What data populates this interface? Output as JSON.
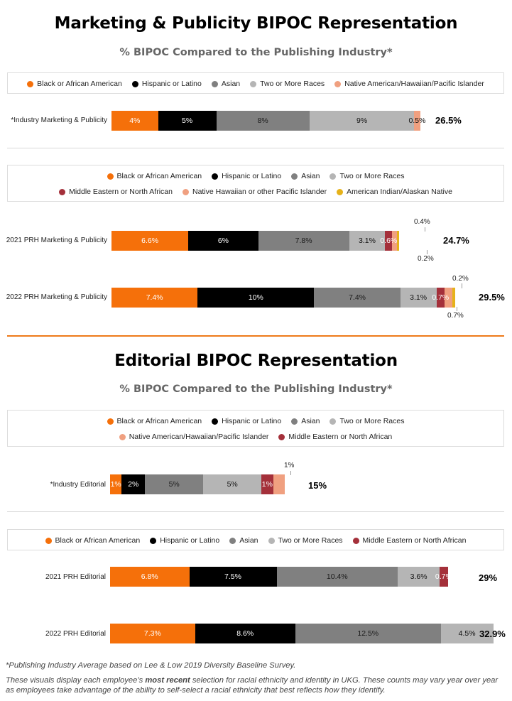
{
  "colors": {
    "black_african_american": "#f5700a",
    "hispanic_latino": "#000000",
    "asian": "#808080",
    "two_or_more": "#b5b5b5",
    "native_pacific": "#f0a080",
    "middle_eastern": "#a4303a",
    "american_indian": "#e6b21a"
  },
  "section1": {
    "title": "Marketing & Publicity BIPOC Representation",
    "subtitle": "% BIPOC Compared to the Publishing Industry*",
    "legend1": [
      {
        "label": "Black or African American",
        "color": "#f5700a"
      },
      {
        "label": "Hispanic or Latino",
        "color": "#000000"
      },
      {
        "label": "Asian",
        "color": "#808080"
      },
      {
        "label": "Two or More Races",
        "color": "#b5b5b5"
      },
      {
        "label": "Native American/Hawaiian/Pacific Islander",
        "color": "#f0a080"
      }
    ],
    "legend2_row1": [
      {
        "label": "Black or African American",
        "color": "#f5700a"
      },
      {
        "label": "Hispanic or Latino",
        "color": "#000000"
      },
      {
        "label": "Asian",
        "color": "#808080"
      },
      {
        "label": "Two or More Races",
        "color": "#b5b5b5"
      }
    ],
    "legend2_row2": [
      {
        "label": "Middle Eastern or North African",
        "color": "#a4303a"
      },
      {
        "label": "Native Hawaiian or other Pacific Islander",
        "color": "#f0a080"
      },
      {
        "label": "American Indian/Alaskan Native",
        "color": "#e6b21a"
      }
    ]
  },
  "section2": {
    "title": "Editorial BIPOC Representation",
    "subtitle": "% BIPOC Compared to the Publishing Industry*",
    "legend1_row1": [
      {
        "label": "Black or African American",
        "color": "#f5700a"
      },
      {
        "label": "Hispanic or Latino",
        "color": "#000000"
      },
      {
        "label": "Asian",
        "color": "#808080"
      },
      {
        "label": "Two or More Races",
        "color": "#b5b5b5"
      }
    ],
    "legend1_row2": [
      {
        "label": "Native American/Hawaiian/Pacific Islander",
        "color": "#f0a080"
      },
      {
        "label": "Middle Eastern or North African",
        "color": "#a4303a"
      }
    ],
    "legend2": [
      {
        "label": "Black or African American",
        "color": "#f5700a"
      },
      {
        "label": "Hispanic or Latino",
        "color": "#000000"
      },
      {
        "label": "Asian",
        "color": "#808080"
      },
      {
        "label": "Two or More Races",
        "color": "#b5b5b5"
      },
      {
        "label": "Middle Eastern or North African",
        "color": "#a4303a"
      }
    ]
  },
  "footnote1": "*Publishing Industry Average based on Lee & Low 2019 Diversity Baseline Survey.",
  "footnote2_pre": "These visuals display each employee’s ",
  "footnote2_bold": "most recent",
  "footnote2_post": " selection for racial ethnicity and identity in UKG.  These counts may vary year over year as employees take advantage of the ability to self-select a racial ethnicity that best reflects how they identify.",
  "chart_data": [
    {
      "type": "bar",
      "stacked": true,
      "orientation": "horizontal",
      "categories": [
        "*Industry Marketing & Publicity"
      ],
      "segments": [
        {
          "name": "Black or African American",
          "value": 4,
          "label": "4%",
          "color": "#f5700a"
        },
        {
          "name": "Hispanic or Latino",
          "value": 5,
          "label": "5%",
          "color": "#000000"
        },
        {
          "name": "Asian",
          "value": 8,
          "label": "8%",
          "color": "#808080"
        },
        {
          "name": "Two or More Races",
          "value": 9,
          "label": "9%",
          "color": "#b5b5b5"
        },
        {
          "name": "Native American/Hawaiian/Pacific Islander",
          "value": 0.5,
          "label": "0.5%",
          "color": "#f0a080"
        }
      ],
      "total": "26.5%"
    },
    {
      "type": "bar",
      "stacked": true,
      "orientation": "horizontal",
      "categories": [
        "2021 PRH Marketing & Publicity"
      ],
      "segments": [
        {
          "name": "Black or African American",
          "value": 6.6,
          "label": "6.6%",
          "color": "#f5700a"
        },
        {
          "name": "Hispanic or Latino",
          "value": 6,
          "label": "6%",
          "color": "#000000"
        },
        {
          "name": "Asian",
          "value": 7.8,
          "label": "7.8%",
          "color": "#808080"
        },
        {
          "name": "Two or More Races",
          "value": 3.1,
          "label": "3.1%",
          "color": "#b5b5b5"
        },
        {
          "name": "Middle Eastern or North African",
          "value": 0.6,
          "label": "0.6%",
          "color": "#a4303a"
        },
        {
          "name": "Native Hawaiian or other Pacific Islander",
          "value": 0.4,
          "label": "0.4%",
          "color": "#f0a080"
        },
        {
          "name": "American Indian/Alaskan Native",
          "value": 0.2,
          "label": "0.2%",
          "color": "#e6b21a"
        }
      ],
      "total": "24.7%"
    },
    {
      "type": "bar",
      "stacked": true,
      "orientation": "horizontal",
      "categories": [
        "2022 PRH Marketing & Publicity"
      ],
      "segments": [
        {
          "name": "Black or African American",
          "value": 7.4,
          "label": "7.4%",
          "color": "#f5700a"
        },
        {
          "name": "Hispanic or Latino",
          "value": 10,
          "label": "10%",
          "color": "#000000"
        },
        {
          "name": "Asian",
          "value": 7.4,
          "label": "7.4%",
          "color": "#808080"
        },
        {
          "name": "Two or More Races",
          "value": 3.1,
          "label": "3.1%",
          "color": "#b5b5b5"
        },
        {
          "name": "Middle Eastern or North African",
          "value": 0.7,
          "label": "0.7%",
          "color": "#a4303a"
        },
        {
          "name": "Native Hawaiian or other Pacific Islander",
          "value": 0.7,
          "label": "0.7%",
          "color": "#f0a080"
        },
        {
          "name": "American Indian/Alaskan Native",
          "value": 0.2,
          "label": "0.2%",
          "color": "#e6b21a"
        }
      ],
      "total": "29.5%"
    },
    {
      "type": "bar",
      "stacked": true,
      "orientation": "horizontal",
      "categories": [
        "*Industry Editorial"
      ],
      "segments": [
        {
          "name": "Black or African American",
          "value": 1,
          "label": "1%",
          "color": "#f5700a"
        },
        {
          "name": "Hispanic or Latino",
          "value": 2,
          "label": "2%",
          "color": "#000000"
        },
        {
          "name": "Asian",
          "value": 5,
          "label": "5%",
          "color": "#808080"
        },
        {
          "name": "Two or More Races",
          "value": 5,
          "label": "5%",
          "color": "#b5b5b5"
        },
        {
          "name": "Middle Eastern or North African",
          "value": 1,
          "label": "1%",
          "color": "#a4303a"
        },
        {
          "name": "Native American/Hawaiian/Pacific Islander",
          "value": 1,
          "label": "1%",
          "color": "#f0a080"
        }
      ],
      "total": "15%"
    },
    {
      "type": "bar",
      "stacked": true,
      "orientation": "horizontal",
      "categories": [
        "2021 PRH Editorial"
      ],
      "segments": [
        {
          "name": "Black or African American",
          "value": 6.8,
          "label": "6.8%",
          "color": "#f5700a"
        },
        {
          "name": "Hispanic or Latino",
          "value": 7.5,
          "label": "7.5%",
          "color": "#000000"
        },
        {
          "name": "Asian",
          "value": 10.4,
          "label": "10.4%",
          "color": "#808080"
        },
        {
          "name": "Two or More Races",
          "value": 3.6,
          "label": "3.6%",
          "color": "#b5b5b5"
        },
        {
          "name": "Middle Eastern or North African",
          "value": 0.7,
          "label": "0.7%",
          "color": "#a4303a"
        }
      ],
      "total": "29%"
    },
    {
      "type": "bar",
      "stacked": true,
      "orientation": "horizontal",
      "categories": [
        "2022 PRH Editorial"
      ],
      "segments": [
        {
          "name": "Black or African American",
          "value": 7.3,
          "label": "7.3%",
          "color": "#f5700a"
        },
        {
          "name": "Hispanic or Latino",
          "value": 8.6,
          "label": "8.6%",
          "color": "#000000"
        },
        {
          "name": "Asian",
          "value": 12.5,
          "label": "12.5%",
          "color": "#808080"
        },
        {
          "name": "Two or More Races",
          "value": 4.5,
          "label": "4.5%",
          "color": "#b5b5b5"
        }
      ],
      "total": "32.9%"
    }
  ]
}
